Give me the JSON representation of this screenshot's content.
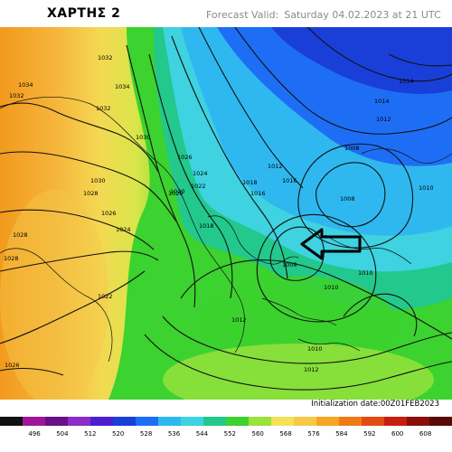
{
  "header": {
    "map_title": "ΧΑΡΤΗΣ 2",
    "forecast_label": "Forecast Valid:",
    "forecast_value": "Saturday 04.02.2023 at 21 UTC"
  },
  "footer": {
    "init_label": "Initialization date:",
    "init_value": "00Z01FEB2023"
  },
  "colors": {
    "orange": "#f5a623",
    "yellow": "#f5e05a",
    "lime": "#9ae23c",
    "green": "#3cd22f",
    "cyan": "#3fd2e0",
    "light_blue": "#2fb8f0",
    "blue": "#1e6ef5",
    "deep_blue": "#1a3fd8"
  },
  "isobars": [
    "1034",
    "1032",
    "1032",
    "1034",
    "1032",
    "1030",
    "1030",
    "1028",
    "1026",
    "1024",
    "1028",
    "1028",
    "1026",
    "1024",
    "1022",
    "1022",
    "1020",
    "1020",
    "1018",
    "1018",
    "1016",
    "1016",
    "1014",
    "1014",
    "1012",
    "1012",
    "1010",
    "1010",
    "1008",
    "1008",
    "1008",
    "1010",
    "1012",
    "1012",
    "1010",
    "1026"
  ],
  "scale": {
    "labels": [
      "496",
      "504",
      "512",
      "520",
      "528",
      "536",
      "544",
      "552",
      "560",
      "568",
      "576",
      "584",
      "592",
      "600",
      "608"
    ],
    "colors": [
      "#111111",
      "#a0149a",
      "#6a0f8a",
      "#8c2bc7",
      "#4b1fd0",
      "#1a3fd8",
      "#1e6ef5",
      "#2fb8f0",
      "#3fd2e0",
      "#22c88c",
      "#3cd22f",
      "#9ae23c",
      "#f5e05a",
      "#f5c84a",
      "#f5a623",
      "#ef7a18",
      "#e34a14",
      "#c81e10",
      "#8a0f0a",
      "#5a0a06"
    ]
  },
  "annotation": {
    "arrow": "left-arrow-icon"
  }
}
